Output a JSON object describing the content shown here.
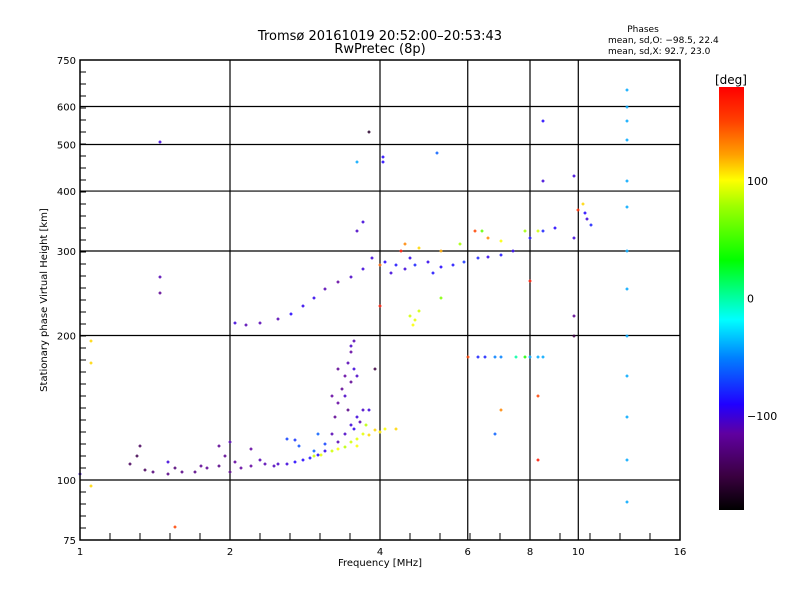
{
  "chart_data": {
    "type": "scatter",
    "title": "Tromsø 20161019 20:52:00–20:53:43",
    "subtitle": "RwPretec (8p)",
    "stats": {
      "heading": "Phases",
      "line_o": "mean, sd,O: −98.5, 22.4",
      "line_x": "mean, sd,X:  92.7, 23.0"
    },
    "xlabel": "Frequency [MHz]",
    "ylabel": "Stationary phase Virtual Height [km]",
    "xscale": "log",
    "yscale": "log",
    "xlim": [
      1,
      16
    ],
    "ylim": [
      75,
      750
    ],
    "xticks": [
      1,
      2,
      4,
      6,
      8,
      10,
      16
    ],
    "yticks": [
      75,
      100,
      200,
      300,
      400,
      500,
      600,
      750
    ],
    "grid": true,
    "colorbar": {
      "label": "[deg]",
      "range": [
        -180,
        180
      ],
      "ticks": [
        100,
        0,
        -100
      ],
      "tick_labels": [
        "100",
        "0",
        "−100"
      ]
    },
    "point_fields": [
      "frequency_mhz",
      "height_km",
      "phase_deg"
    ],
    "points": [
      [
        1.0,
        103,
        -100
      ],
      [
        1.26,
        108,
        -140
      ],
      [
        1.3,
        112,
        -145
      ],
      [
        1.32,
        118,
        -140
      ],
      [
        1.35,
        105,
        -140
      ],
      [
        1.4,
        104,
        -130
      ],
      [
        1.5,
        103,
        -125
      ],
      [
        1.55,
        106,
        -130
      ],
      [
        1.6,
        104,
        -125
      ],
      [
        1.7,
        104,
        -125
      ],
      [
        1.75,
        107,
        -120
      ],
      [
        1.8,
        106,
        -120
      ],
      [
        1.9,
        107,
        -125
      ],
      [
        1.95,
        112,
        -120
      ],
      [
        2.0,
        104,
        -125
      ],
      [
        2.05,
        109,
        -115
      ],
      [
        2.1,
        106,
        -115
      ],
      [
        2.2,
        107,
        -115
      ],
      [
        2.3,
        110,
        -110
      ],
      [
        2.35,
        108,
        -110
      ],
      [
        2.45,
        107,
        -108
      ],
      [
        2.5,
        108,
        -105
      ],
      [
        2.6,
        108,
        -100
      ],
      [
        2.7,
        109,
        -90
      ],
      [
        2.8,
        110,
        -90
      ],
      [
        2.9,
        111,
        -85
      ],
      [
        3.0,
        113,
        -90
      ],
      [
        3.1,
        115,
        -95
      ],
      [
        1.9,
        118,
        -120
      ],
      [
        2.0,
        120,
        -110
      ],
      [
        2.2,
        116,
        -115
      ],
      [
        1.5,
        109,
        -100
      ],
      [
        3.2,
        125,
        -110
      ],
      [
        3.25,
        135,
        -120
      ],
      [
        3.3,
        145,
        -115
      ],
      [
        3.35,
        155,
        -120
      ],
      [
        3.4,
        165,
        -115
      ],
      [
        3.45,
        175,
        -110
      ],
      [
        3.5,
        185,
        -115
      ],
      [
        3.55,
        195,
        -110
      ],
      [
        3.4,
        150,
        -105
      ],
      [
        3.5,
        160,
        -120
      ],
      [
        3.6,
        165,
        -105
      ],
      [
        3.3,
        170,
        -120
      ],
      [
        3.45,
        140,
        -125
      ],
      [
        3.55,
        170,
        -100
      ],
      [
        3.2,
        150,
        -115
      ],
      [
        3.5,
        190,
        -105
      ],
      [
        3.4,
        125,
        -105
      ],
      [
        3.5,
        130,
        -100
      ],
      [
        3.6,
        135,
        -100
      ],
      [
        3.7,
        140,
        -105
      ],
      [
        3.3,
        120,
        -110
      ],
      [
        3.55,
        128,
        -95
      ],
      [
        3.65,
        132,
        -110
      ],
      [
        3.8,
        140,
        -100
      ],
      [
        2.6,
        122,
        -70
      ],
      [
        2.7,
        121,
        -75
      ],
      [
        2.75,
        118,
        -65
      ],
      [
        3.0,
        125,
        -60
      ],
      [
        3.1,
        119,
        -70
      ],
      [
        2.95,
        115,
        -60
      ],
      [
        2.95,
        112,
        90
      ],
      [
        3.05,
        113,
        95
      ],
      [
        3.2,
        115,
        90
      ],
      [
        3.3,
        116,
        100
      ],
      [
        3.4,
        117,
        85
      ],
      [
        3.5,
        120,
        90
      ],
      [
        3.6,
        122,
        95
      ],
      [
        3.7,
        125,
        95
      ],
      [
        3.8,
        124,
        110
      ],
      [
        3.9,
        127,
        110
      ],
      [
        4.0,
        126,
        105
      ],
      [
        4.1,
        128,
        100
      ],
      [
        4.3,
        128,
        110
      ],
      [
        3.6,
        118,
        100
      ],
      [
        3.75,
        130,
        85
      ],
      [
        2.05,
        212,
        -100
      ],
      [
        2.15,
        210,
        -110
      ],
      [
        2.3,
        212,
        -110
      ],
      [
        2.5,
        216,
        -110
      ],
      [
        2.65,
        222,
        -90
      ],
      [
        2.8,
        230,
        -95
      ],
      [
        2.95,
        240,
        -95
      ],
      [
        3.1,
        250,
        -110
      ],
      [
        3.3,
        258,
        -115
      ],
      [
        3.5,
        265,
        -105
      ],
      [
        3.7,
        275,
        -100
      ],
      [
        3.85,
        290,
        -100
      ],
      [
        3.6,
        330,
        -105
      ],
      [
        3.7,
        345,
        -100
      ],
      [
        4.1,
        285,
        -90
      ],
      [
        4.2,
        270,
        -100
      ],
      [
        4.3,
        280,
        -85
      ],
      [
        4.5,
        275,
        -100
      ],
      [
        4.6,
        290,
        -95
      ],
      [
        4.7,
        280,
        -80
      ],
      [
        5.0,
        285,
        -95
      ],
      [
        5.1,
        270,
        -85
      ],
      [
        5.3,
        278,
        -90
      ],
      [
        5.6,
        280,
        -85
      ],
      [
        5.9,
        285,
        -75
      ],
      [
        6.3,
        290,
        -80
      ],
      [
        6.6,
        292,
        -95
      ],
      [
        7.0,
        295,
        -85
      ],
      [
        7.4,
        300,
        -95
      ],
      [
        8.0,
        320,
        -85
      ],
      [
        8.5,
        330,
        -80
      ],
      [
        9.0,
        335,
        -90
      ],
      [
        10.3,
        360,
        -90
      ],
      [
        10.6,
        340,
        -80
      ],
      [
        10.4,
        350,
        -100
      ],
      [
        4.5,
        310,
        130
      ],
      [
        4.8,
        305,
        110
      ],
      [
        5.3,
        300,
        120
      ],
      [
        5.8,
        310,
        80
      ],
      [
        6.2,
        330,
        150
      ],
      [
        6.6,
        320,
        130
      ],
      [
        7.0,
        315,
        100
      ],
      [
        7.8,
        330,
        80
      ],
      [
        8.3,
        330,
        90
      ],
      [
        10.2,
        375,
        110
      ],
      [
        10.0,
        365,
        160
      ],
      [
        6.4,
        330,
        60
      ],
      [
        4.0,
        280,
        140
      ],
      [
        4.4,
        300,
        170
      ],
      [
        4.6,
        220,
        90
      ],
      [
        4.7,
        215,
        95
      ],
      [
        4.8,
        225,
        90
      ],
      [
        4.65,
        210,
        100
      ],
      [
        5.3,
        240,
        70
      ],
      [
        6.0,
        180,
        150
      ],
      [
        6.3,
        180,
        -80
      ],
      [
        6.5,
        180,
        -80
      ],
      [
        6.8,
        180,
        -50
      ],
      [
        7.0,
        180,
        -50
      ],
      [
        7.5,
        180,
        0
      ],
      [
        7.8,
        180,
        40
      ],
      [
        8.0,
        180,
        -40
      ],
      [
        8.3,
        180,
        -40
      ],
      [
        8.5,
        180,
        -40
      ],
      [
        12.5,
        90,
        -40
      ],
      [
        12.5,
        110,
        -40
      ],
      [
        12.5,
        135,
        -40
      ],
      [
        12.5,
        165,
        -40
      ],
      [
        12.5,
        200,
        -40
      ],
      [
        12.5,
        250,
        -40
      ],
      [
        12.5,
        300,
        -40
      ],
      [
        12.5,
        370,
        -40
      ],
      [
        12.5,
        420,
        -40
      ],
      [
        12.5,
        510,
        -40
      ],
      [
        12.5,
        560,
        -40
      ],
      [
        12.5,
        600,
        -40
      ],
      [
        12.5,
        650,
        -40
      ],
      [
        1.45,
        505,
        -100
      ],
      [
        1.45,
        265,
        -110
      ],
      [
        1.45,
        245,
        -120
      ],
      [
        3.8,
        530,
        -160
      ],
      [
        4.05,
        470,
        -90
      ],
      [
        4.05,
        460,
        -90
      ],
      [
        5.2,
        480,
        -60
      ],
      [
        3.6,
        460,
        -40
      ],
      [
        8.5,
        560,
        -90
      ],
      [
        8.5,
        420,
        -100
      ],
      [
        9.8,
        430,
        -100
      ],
      [
        9.8,
        320,
        -100
      ],
      [
        9.8,
        220,
        -120
      ],
      [
        1.05,
        195,
        110
      ],
      [
        1.05,
        175,
        110
      ],
      [
        1.05,
        97,
        110
      ],
      [
        1.55,
        80,
        150
      ],
      [
        8.3,
        150,
        150
      ],
      [
        8.3,
        110,
        170
      ],
      [
        9.8,
        200,
        -150
      ],
      [
        8.0,
        260,
        170
      ],
      [
        7.0,
        140,
        130
      ],
      [
        6.8,
        125,
        -60
      ],
      [
        3.9,
        170,
        -150
      ],
      [
        4.0,
        230,
        170
      ]
    ]
  }
}
